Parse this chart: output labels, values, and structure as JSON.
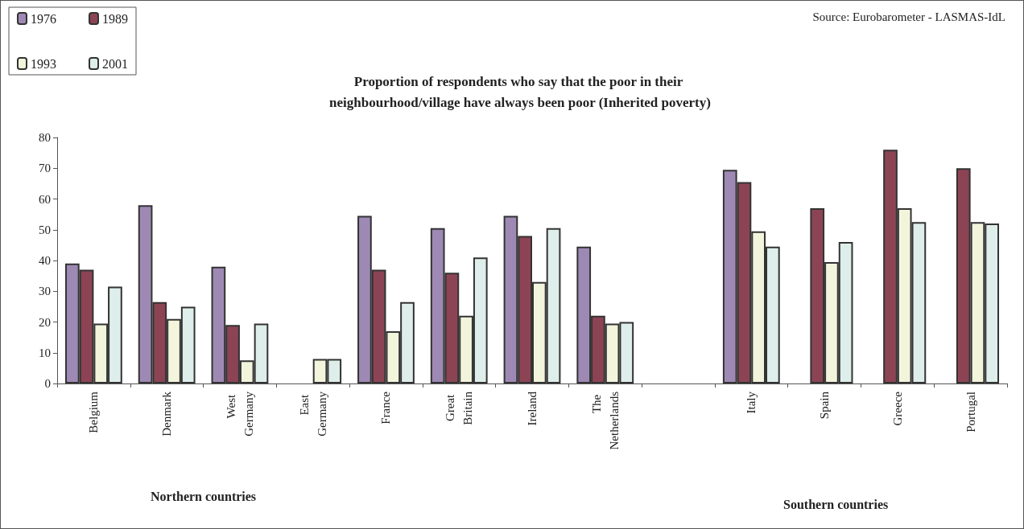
{
  "chart_data": {
    "type": "bar",
    "title": "Proportion of respondents who say that the poor in their neighbourhood/village have always been poor (Inherited poverty)",
    "categories": [
      "Belgium",
      "Denmark",
      "West Germany",
      "East Germany",
      "France",
      "Great Britain",
      "Ireland",
      "The Netherlands",
      null,
      "Italy",
      "Spain",
      "Greece",
      "Portugal"
    ],
    "series": [
      {
        "name": "1976",
        "color": "#9e89b4",
        "values": [
          39,
          58,
          38,
          null,
          54.5,
          50.5,
          54.5,
          44.5,
          null,
          69.5,
          null,
          null,
          null
        ]
      },
      {
        "name": "1989",
        "color": "#8c4455",
        "values": [
          37,
          26.5,
          19,
          null,
          37,
          36,
          48,
          22,
          null,
          65.5,
          57,
          76,
          70
        ]
      },
      {
        "name": "1993",
        "color": "#f2f4dc",
        "values": [
          19.5,
          21,
          7.5,
          8,
          17,
          22,
          33,
          19.5,
          null,
          49.5,
          39.5,
          57,
          52.5
        ]
      },
      {
        "name": "2001",
        "color": "#deeeeb",
        "values": [
          31.5,
          25,
          19.5,
          8,
          26.5,
          41,
          50.5,
          20,
          null,
          44.5,
          46,
          52.5,
          52
        ]
      }
    ],
    "ylim": [
      0,
      80
    ],
    "yticks": [
      0,
      10,
      20,
      30,
      40,
      50,
      60,
      70,
      80
    ],
    "grid": false,
    "legend": "top left",
    "annotations": [
      "Source: Eurobarometer - LASMAS-IdL",
      "Northern countries",
      "Southern countries"
    ]
  }
}
